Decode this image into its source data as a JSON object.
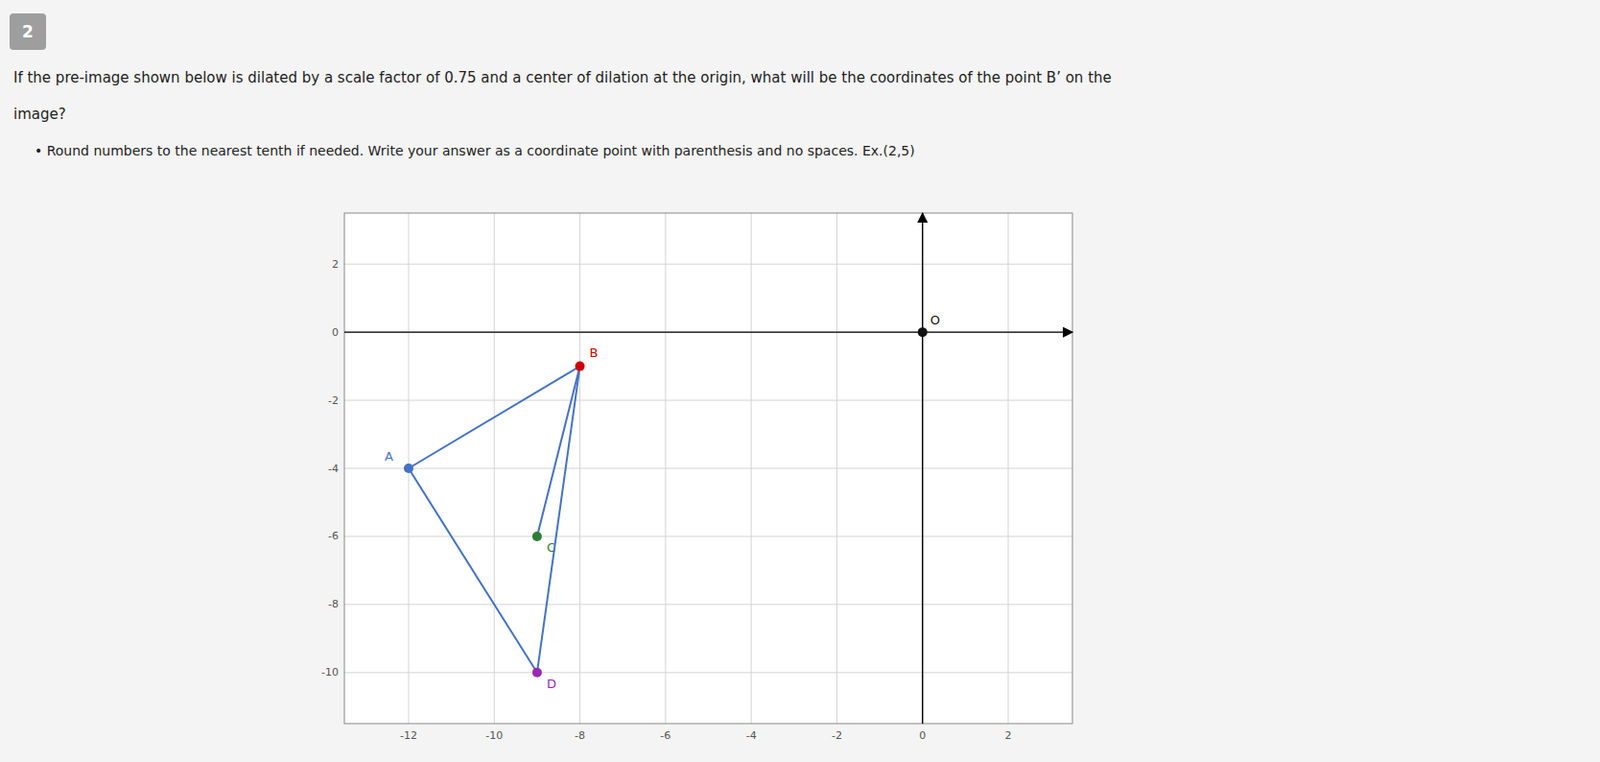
{
  "chart_data": {
    "type": "scatter",
    "badge": "2",
    "title": [
      "If the pre-image shown below is dilated by a scale factor of 0.75 and a center of dilation at the origin, what will be the coordinates of the point B’ on the",
      "image?"
    ],
    "subtitle": "• Round numbers to the nearest tenth if needed. Write your answer as a coordinate point with parenthesis and no spaces. Ex.(2,5)",
    "x": [
      -12,
      -8,
      -9,
      -9,
      0
    ],
    "values": [
      -4,
      -1,
      -6,
      -10,
      0
    ],
    "point_labels": [
      "A",
      "B",
      "C",
      "D",
      "O"
    ],
    "colors": [
      "#4472C4",
      "#CC0000",
      "#2E7D32",
      "#9C27B0",
      "#111111"
    ],
    "segments": [
      [
        0,
        1
      ],
      [
        1,
        2
      ],
      [
        1,
        3
      ],
      [
        0,
        3
      ]
    ],
    "color": "#4472C4",
    "xlim": [
      -13.5,
      3.5
    ],
    "ylim": [
      -11.5,
      3.5
    ],
    "xticks": [
      -12,
      -10,
      -8,
      -6,
      -4,
      -2,
      0,
      2
    ],
    "yticks": [
      -10,
      -8,
      -6,
      -4,
      -2,
      0,
      2
    ],
    "grid": true
  }
}
